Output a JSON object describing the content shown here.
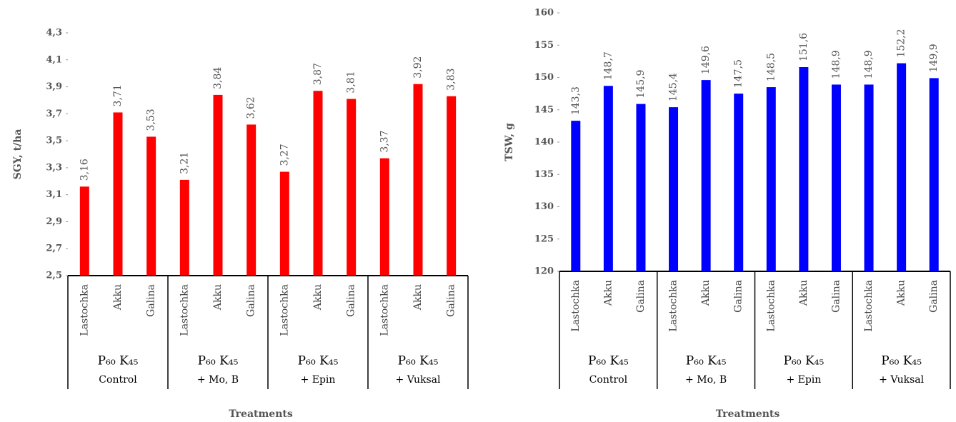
{
  "chart_data": [
    {
      "type": "bar",
      "y_label": "SGY,  t/ha",
      "x_label": "Treatments",
      "color": "#ff0000",
      "categories": [
        "Lastochka",
        "Akku",
        "Galina",
        "Lastochka",
        "Akku",
        "Galina",
        "Lastochka",
        "Akku",
        "Galina",
        "Lastochka",
        "Akku",
        "Galina"
      ],
      "groups": [
        {
          "label": "P₆₀ K₄₅",
          "note": "Control"
        },
        {
          "label": "P₆₀ K₄₅",
          "note": "+ Mo, B"
        },
        {
          "label": "P₆₀ K₄₅",
          "note": "+ Epin"
        },
        {
          "label": "P₆₀ K₄₅",
          "note": "+ Vuksal"
        }
      ],
      "values": [
        3.16,
        3.71,
        3.53,
        3.21,
        3.84,
        3.62,
        3.27,
        3.87,
        3.81,
        3.37,
        3.92,
        3.83
      ],
      "value_labels": [
        "3,16",
        "3,71",
        "3,53",
        "3,21",
        "3,84",
        "3,62",
        "3,27",
        "3,87",
        "3,81",
        "3,37",
        "3,92",
        "3,83"
      ],
      "ylim": [
        2.5,
        4.3
      ],
      "yticks": [
        {
          "value": 2.5,
          "label": "2,5"
        },
        {
          "value": 2.7,
          "label": "2,7"
        },
        {
          "value": 2.9,
          "label": "2,9"
        },
        {
          "value": 3.1,
          "label": "3,1"
        },
        {
          "value": 3.3,
          "label": "3,3"
        },
        {
          "value": 3.5,
          "label": "3,5"
        },
        {
          "value": 3.7,
          "label": "3,7"
        },
        {
          "value": 3.9,
          "label": "3,9"
        },
        {
          "value": 4.1,
          "label": "4,1"
        },
        {
          "value": 4.3,
          "label": "4,3"
        }
      ]
    },
    {
      "type": "bar",
      "y_label": "TSW,  g",
      "x_label": "Treatments",
      "color": "#0000ff",
      "categories": [
        "Lastochka",
        "Akku",
        "Galina",
        "Lastochka",
        "Akku",
        "Galina",
        "Lastochka",
        "Akku",
        "Galina",
        "Lastochka",
        "Akku",
        "Galina"
      ],
      "groups": [
        {
          "label": "P₆₀ K₄₅",
          "note": "Control"
        },
        {
          "label": "P₆₀ K₄₅",
          "note": "+ Mo, B"
        },
        {
          "label": "P₆₀ K₄₅",
          "note": "+ Epin"
        },
        {
          "label": "P₆₀ K₄₅",
          "note": "+ Vuksal"
        }
      ],
      "values": [
        143.3,
        148.7,
        145.9,
        145.4,
        149.6,
        147.5,
        148.5,
        151.6,
        148.9,
        148.9,
        152.2,
        149.9
      ],
      "value_labels": [
        "143,3",
        "148,7",
        "145,9",
        "145,4",
        "149,6",
        "147,5",
        "148,5",
        "151,6",
        "148,9",
        "148,9",
        "152,2",
        "149,9"
      ],
      "ylim": [
        120,
        160
      ],
      "yticks": [
        120,
        125,
        130,
        135,
        140,
        145,
        150,
        155,
        160
      ]
    }
  ]
}
